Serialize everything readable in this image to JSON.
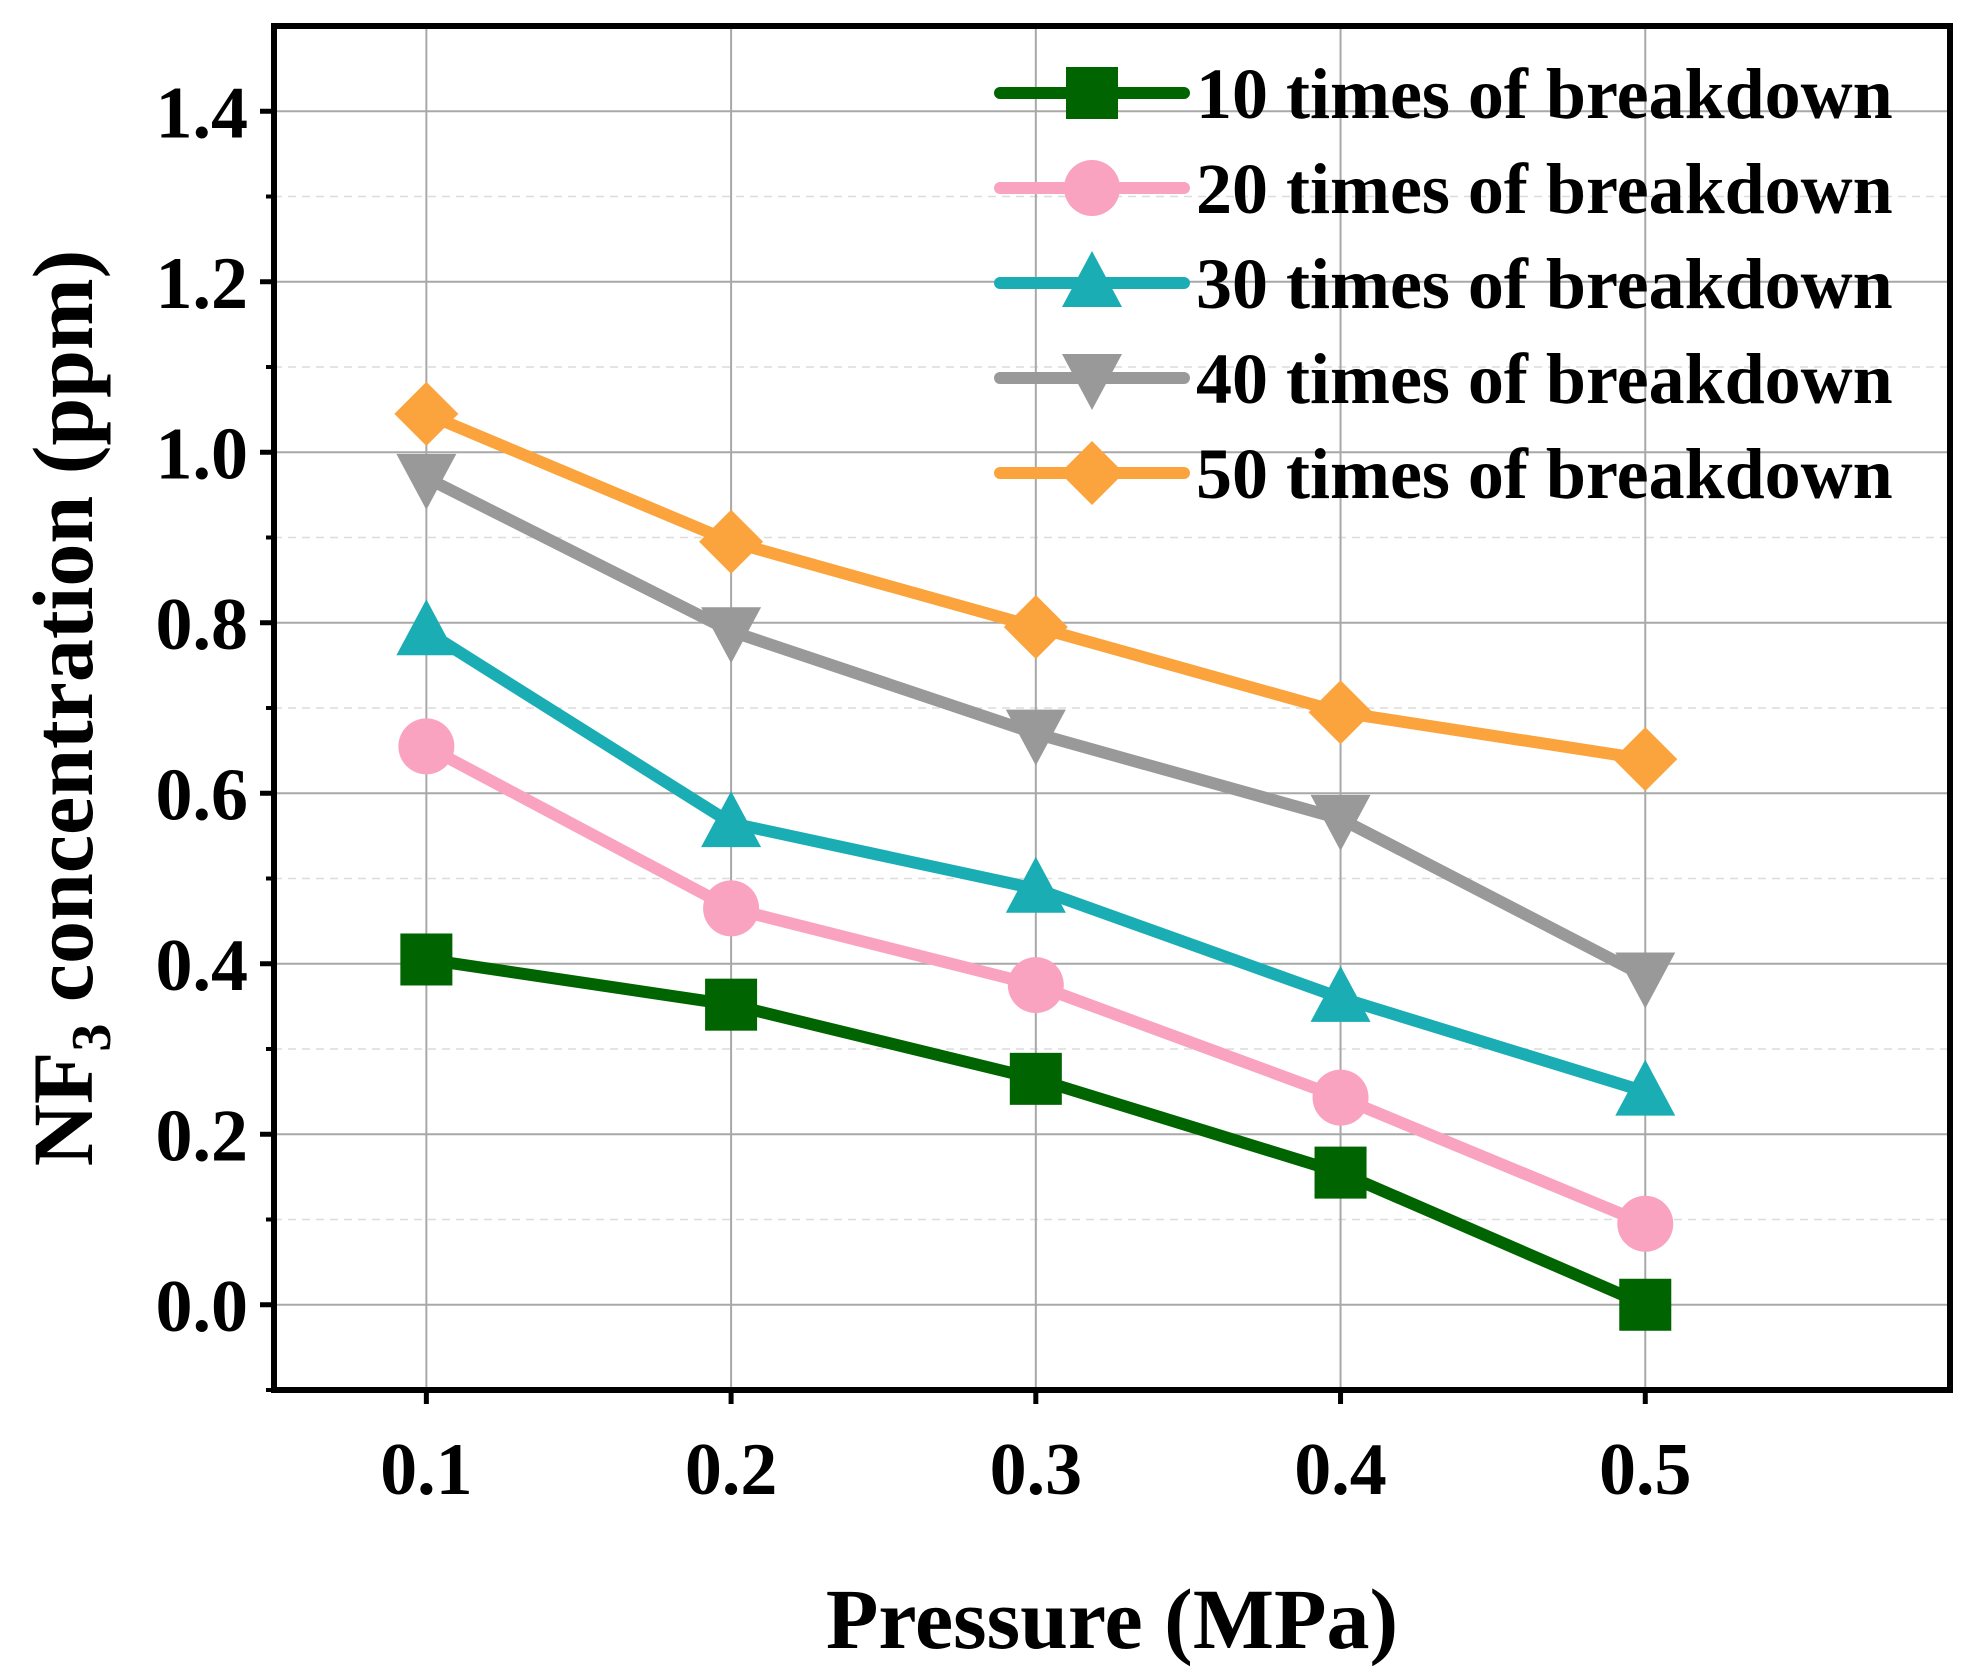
{
  "chart_data": {
    "type": "line",
    "title": "",
    "xlabel": "Pressure (MPa)",
    "ylabel_main": "NF",
    "ylabel_sub": "3",
    "ylabel_rest": " concentration (ppm)",
    "x": [
      0.1,
      0.2,
      0.3,
      0.4,
      0.5
    ],
    "xticks": [
      "0.1",
      "0.2",
      "0.3",
      "0.4",
      "0.5"
    ],
    "yticks": [
      "0.0",
      "0.2",
      "0.4",
      "0.6",
      "0.8",
      "1.0",
      "1.2",
      "1.4"
    ],
    "xlim": [
      0.05,
      0.6
    ],
    "ylim": [
      -0.1,
      1.5
    ],
    "grid": true,
    "legend_position": "top-right",
    "series": [
      {
        "name": "10 times of breakdown",
        "color": "#006400",
        "marker": "square",
        "values": [
          0.405,
          0.352,
          0.265,
          0.155,
          0.0
        ]
      },
      {
        "name": "20 times of breakdown",
        "color": "#F9A3C0",
        "marker": "circle",
        "values": [
          0.655,
          0.465,
          0.375,
          0.243,
          0.095
        ]
      },
      {
        "name": "30 times of breakdown",
        "color": "#1AADB4",
        "marker": "triangle-up",
        "values": [
          0.79,
          0.565,
          0.488,
          0.36,
          0.25
        ]
      },
      {
        "name": "40 times of breakdown",
        "color": "#999999",
        "marker": "triangle-down",
        "values": [
          0.97,
          0.79,
          0.67,
          0.57,
          0.385
        ]
      },
      {
        "name": "50 times of breakdown",
        "color": "#FBA33C",
        "marker": "diamond",
        "values": [
          1.045,
          0.895,
          0.795,
          0.695,
          0.64
        ]
      }
    ]
  }
}
